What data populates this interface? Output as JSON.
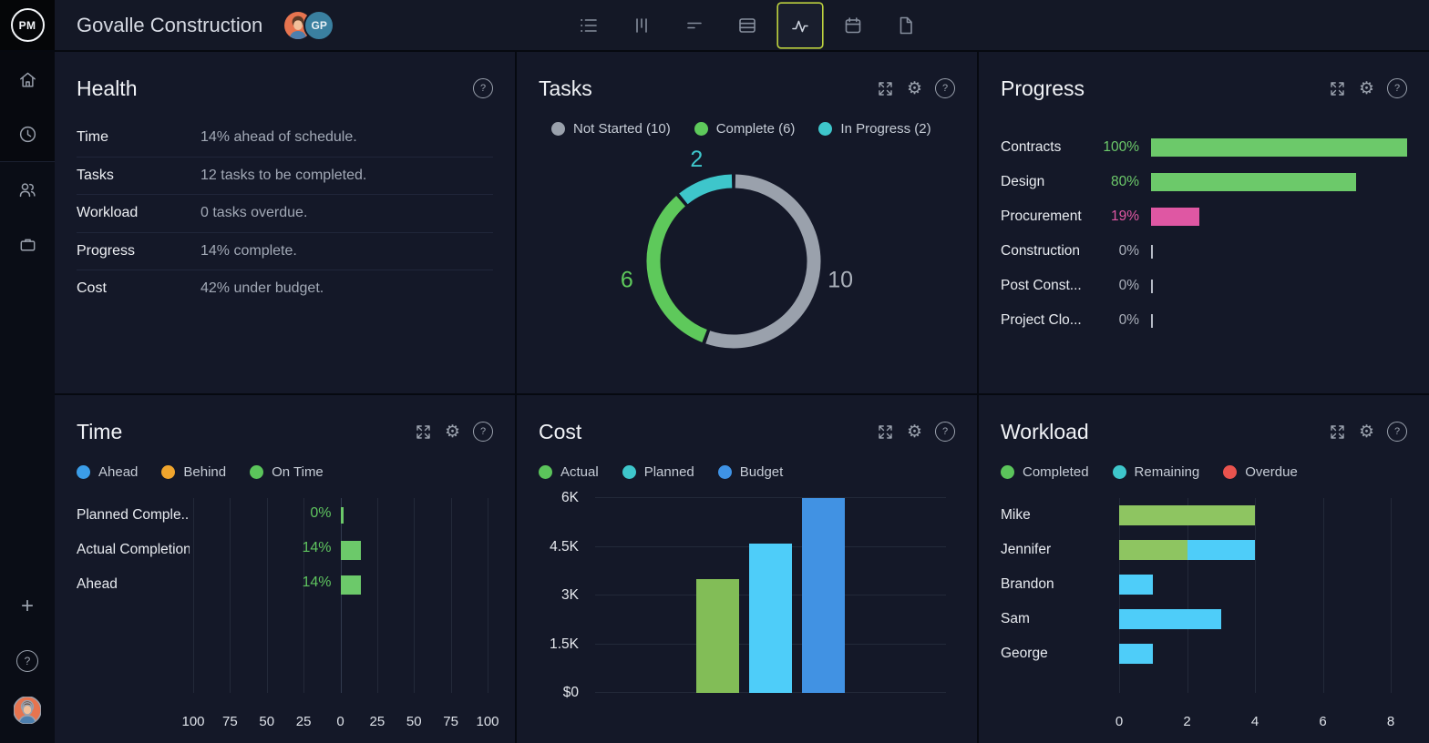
{
  "topbar": {
    "logo_text": "PM",
    "project_title": "Govalle Construction",
    "avatar_gp_initials": "GP",
    "tools": [
      {
        "name": "list-view"
      },
      {
        "name": "board-view"
      },
      {
        "name": "gantt-view"
      },
      {
        "name": "table-view"
      },
      {
        "name": "dashboard-view",
        "selected": true
      },
      {
        "name": "calendar-view"
      },
      {
        "name": "docs-view"
      }
    ]
  },
  "sidebar": {
    "items": [
      "home",
      "timesheets",
      "team",
      "projects"
    ],
    "footer": [
      "add",
      "help",
      "profile"
    ]
  },
  "panels": {
    "health": {
      "title": "Health",
      "rows": [
        {
          "label": "Time",
          "value": "14% ahead of schedule."
        },
        {
          "label": "Tasks",
          "value": "12 tasks to be completed."
        },
        {
          "label": "Workload",
          "value": "0 tasks overdue."
        },
        {
          "label": "Progress",
          "value": "14% complete."
        },
        {
          "label": "Cost",
          "value": "42% under budget."
        }
      ]
    },
    "tasks": {
      "title": "Tasks"
    },
    "progress": {
      "title": "Progress"
    },
    "time": {
      "title": "Time"
    },
    "cost": {
      "title": "Cost"
    },
    "workload": {
      "title": "Workload"
    }
  },
  "chart_data": {
    "tasks": {
      "type": "donut",
      "legend": [
        {
          "label": "Not Started (10)",
          "color": "#9aa1ac"
        },
        {
          "label": "Complete (6)",
          "color": "#5ec95b"
        },
        {
          "label": "In Progress (2)",
          "color": "#3ec6cb"
        }
      ],
      "segments": [
        {
          "label": "Not Started",
          "value": 10,
          "color": "#9aa1ac",
          "label_color": "#aab0ba"
        },
        {
          "label": "Complete",
          "value": 6,
          "color": "#5ec95b",
          "label_color": "#5ec95b"
        },
        {
          "label": "In Progress",
          "value": 2,
          "color": "#3ec6cb",
          "label_color": "#3ec6cb"
        }
      ]
    },
    "progress": {
      "type": "bar-horizontal",
      "rows": [
        {
          "label": "Contracts",
          "pct": 100,
          "color": "#6cc96a"
        },
        {
          "label": "Design",
          "pct": 80,
          "color": "#6cc96a"
        },
        {
          "label": "Procurement",
          "pct": 19,
          "color": "#df57a3"
        },
        {
          "label": "Construction",
          "pct": 0,
          "color": "#a9aeb9"
        },
        {
          "label": "Post Const...",
          "pct": 0,
          "color": "#a9aeb9"
        },
        {
          "label": "Project Clo...",
          "pct": 0,
          "color": "#a9aeb9"
        }
      ]
    },
    "time": {
      "type": "mirrored-bar-horizontal",
      "legend": [
        {
          "label": "Ahead",
          "color": "#3b9de8"
        },
        {
          "label": "Behind",
          "color": "#f0a52d"
        },
        {
          "label": "On Time",
          "color": "#5bc45b"
        }
      ],
      "axis_ticks": [
        "100",
        "75",
        "50",
        "25",
        "0",
        "25",
        "50",
        "75",
        "100"
      ],
      "max": 100,
      "bar_color": "#6cc96a",
      "value_color": "#5fc45f",
      "rows": [
        {
          "label": "Planned Comple...",
          "pct": 0
        },
        {
          "label": "Actual Completion",
          "pct": 14
        },
        {
          "label": "Ahead",
          "pct": 14
        }
      ]
    },
    "cost": {
      "type": "bar",
      "legend": [
        {
          "label": "Actual",
          "color": "#5bc45b"
        },
        {
          "label": "Planned",
          "color": "#3ec6cb"
        },
        {
          "label": "Budget",
          "color": "#3f93e6"
        }
      ],
      "yticks": [
        "$0",
        "1.5K",
        "3K",
        "4.5K",
        "6K"
      ],
      "ylim": [
        0,
        6000
      ],
      "series": [
        {
          "name": "Actual",
          "value": 3500,
          "color": "#82bd57"
        },
        {
          "name": "Planned",
          "value": 4600,
          "color": "#4ecdf9"
        },
        {
          "name": "Budget",
          "value": 6000,
          "color": "#4192e3"
        }
      ]
    },
    "workload": {
      "type": "stacked-bar-horizontal",
      "legend": [
        {
          "label": "Completed",
          "color": "#5bc45b"
        },
        {
          "label": "Remaining",
          "color": "#3ec6cb"
        },
        {
          "label": "Overdue",
          "color": "#e9534e"
        }
      ],
      "xticks": [
        "0",
        "2",
        "4",
        "6",
        "8"
      ],
      "xmax": 8,
      "bar_colors": {
        "completed": "#8ec561",
        "remaining": "#4ecdf9"
      },
      "rows": [
        {
          "name": "Mike",
          "completed": 4,
          "remaining": 0
        },
        {
          "name": "Jennifer",
          "completed": 2,
          "remaining": 2
        },
        {
          "name": "Brandon",
          "completed": 0,
          "remaining": 1
        },
        {
          "name": "Sam",
          "completed": 0,
          "remaining": 3
        },
        {
          "name": "George",
          "completed": 0,
          "remaining": 1
        }
      ]
    }
  }
}
